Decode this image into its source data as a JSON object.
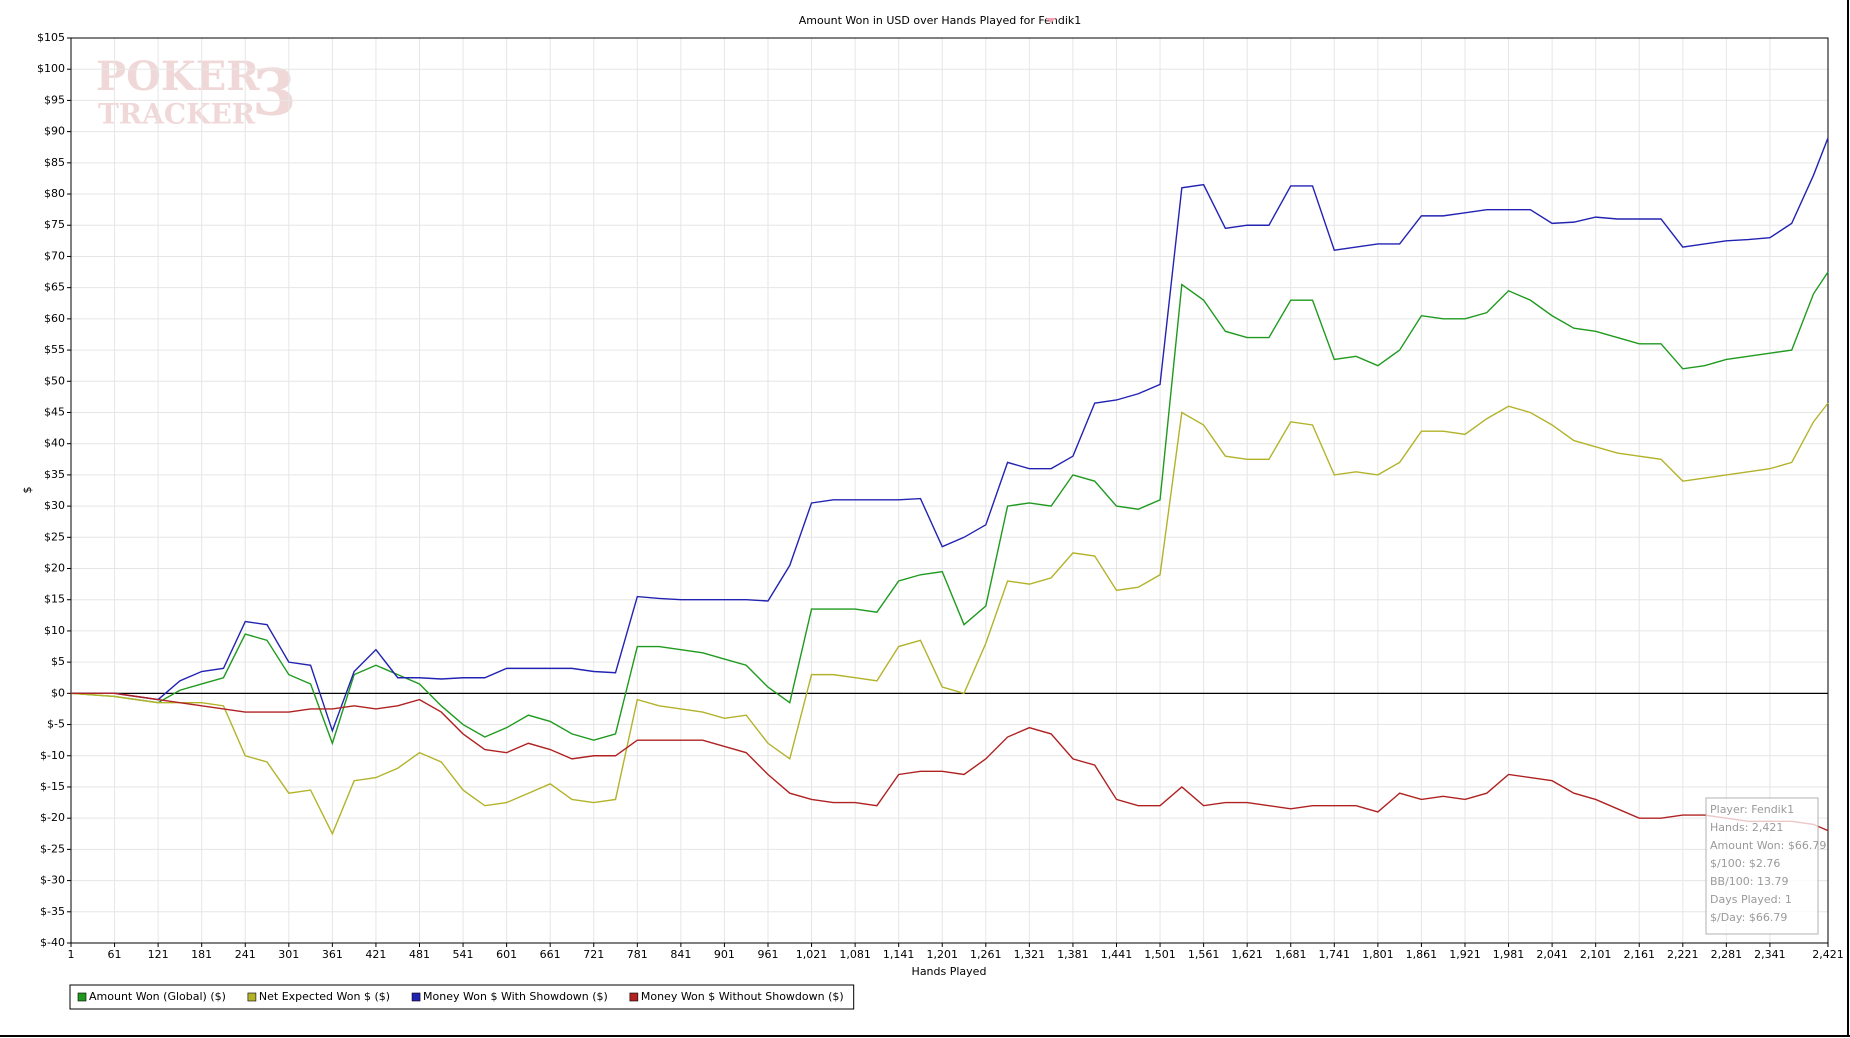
{
  "chart_data": {
    "type": "line",
    "title": "Amount Won in USD over Hands Played for Fendik1",
    "x_label": "Hands Played",
    "y_label": "$",
    "watermark": [
      "POKER",
      "TRACKER",
      "3"
    ],
    "annotations": [
      "Player: Fendik1",
      "Hands: 2,421",
      "Amount Won: $66.79",
      "$/100: $2.76",
      "BB/100: 13.79",
      "Days Played: 1",
      "$/Day: $66.79"
    ],
    "grid": true,
    "xlim": [
      1,
      2421
    ],
    "ylim": [
      -40,
      105
    ],
    "xticks": [
      1,
      61,
      121,
      181,
      241,
      301,
      361,
      421,
      481,
      541,
      601,
      661,
      721,
      781,
      841,
      901,
      961,
      {
        "value": 1021,
        "label": "1,021"
      },
      {
        "value": 1081,
        "label": "1,081"
      },
      {
        "value": 1141,
        "label": "1,141"
      },
      {
        "value": 1201,
        "label": "1,201"
      },
      {
        "value": 1261,
        "label": "1,261"
      },
      {
        "value": 1321,
        "label": "1,321"
      },
      {
        "value": 1381,
        "label": "1,381"
      },
      {
        "value": 1441,
        "label": "1,441"
      },
      {
        "value": 1501,
        "label": "1,501"
      },
      {
        "value": 1561,
        "label": "1,561"
      },
      {
        "value": 1621,
        "label": "1,621"
      },
      {
        "value": 1681,
        "label": "1,681"
      },
      {
        "value": 1741,
        "label": "1,741"
      },
      {
        "value": 1801,
        "label": "1,801"
      },
      {
        "value": 1861,
        "label": "1,861"
      },
      {
        "value": 1921,
        "label": "1,921"
      },
      {
        "value": 1981,
        "label": "1,981"
      },
      {
        "value": 2041,
        "label": "2,041"
      },
      {
        "value": 2101,
        "label": "2,101"
      },
      {
        "value": 2161,
        "label": "2,161"
      },
      {
        "value": 2221,
        "label": "2,221"
      },
      {
        "value": 2281,
        "label": "2,281"
      },
      {
        "value": 2341,
        "label": "2,341"
      },
      {
        "value": 2421,
        "label": "2,421"
      }
    ],
    "yticks": [
      {
        "value": -40,
        "label": "$-40"
      },
      {
        "value": -35,
        "label": "$-35"
      },
      {
        "value": -30,
        "label": "$-30"
      },
      {
        "value": -25,
        "label": "$-25"
      },
      {
        "value": -20,
        "label": "$-20"
      },
      {
        "value": -15,
        "label": "$-15"
      },
      {
        "value": -10,
        "label": "$-10"
      },
      {
        "value": -5,
        "label": "$-5"
      },
      {
        "value": 0,
        "label": "$0"
      },
      {
        "value": 5,
        "label": "$5"
      },
      {
        "value": 10,
        "label": "$10"
      },
      {
        "value": 15,
        "label": "$15"
      },
      {
        "value": 20,
        "label": "$20"
      },
      {
        "value": 25,
        "label": "$25"
      },
      {
        "value": 30,
        "label": "$30"
      },
      {
        "value": 35,
        "label": "$35"
      },
      {
        "value": 40,
        "label": "$40"
      },
      {
        "value": 45,
        "label": "$45"
      },
      {
        "value": 50,
        "label": "$50"
      },
      {
        "value": 55,
        "label": "$55"
      },
      {
        "value": 60,
        "label": "$60"
      },
      {
        "value": 65,
        "label": "$65"
      },
      {
        "value": 70,
        "label": "$70"
      },
      {
        "value": 75,
        "label": "$75"
      },
      {
        "value": 80,
        "label": "$80"
      },
      {
        "value": 85,
        "label": "$85"
      },
      {
        "value": 90,
        "label": "$90"
      },
      {
        "value": 95,
        "label": "$95"
      },
      {
        "value": 100,
        "label": "$100"
      },
      {
        "value": 105,
        "label": "$105"
      }
    ],
    "x": [
      1,
      61,
      121,
      151,
      181,
      211,
      241,
      271,
      301,
      331,
      361,
      391,
      421,
      451,
      481,
      511,
      541,
      571,
      601,
      631,
      661,
      691,
      721,
      751,
      781,
      811,
      841,
      871,
      901,
      931,
      961,
      991,
      1021,
      1051,
      1081,
      1111,
      1141,
      1171,
      1201,
      1231,
      1261,
      1291,
      1321,
      1351,
      1381,
      1411,
      1441,
      1471,
      1501,
      1531,
      1561,
      1591,
      1621,
      1651,
      1681,
      1711,
      1741,
      1771,
      1801,
      1831,
      1861,
      1891,
      1921,
      1951,
      1981,
      2011,
      2041,
      2071,
      2101,
      2131,
      2161,
      2191,
      2221,
      2251,
      2281,
      2311,
      2341,
      2371,
      2401,
      2421
    ],
    "series": [
      {
        "name": "Amount Won (Global) ($)",
        "color": "#1f9a1f",
        "values": [
          0,
          -0.5,
          -1.5,
          0.5,
          1.5,
          2.5,
          9.5,
          8.5,
          3,
          1.5,
          -8,
          3,
          4.5,
          3,
          1.5,
          -2,
          -5,
          -7,
          -5.5,
          -3.5,
          -4.5,
          -6.5,
          -7.5,
          -6.5,
          7.5,
          7.5,
          7,
          6.5,
          5.5,
          4.5,
          1,
          -1.5,
          13.5,
          13.5,
          13.5,
          13,
          18,
          19,
          19.5,
          11,
          14,
          30,
          30.5,
          30,
          35,
          34,
          30,
          29.5,
          31,
          65.5,
          63,
          58,
          57,
          57,
          63,
          63,
          53.5,
          54,
          52.5,
          55,
          60.5,
          60,
          60,
          61,
          64.5,
          63,
          60.5,
          58.5,
          58,
          57,
          56,
          56,
          52,
          52.5,
          53.5,
          54,
          54.5,
          55,
          64,
          67.5
        ]
      },
      {
        "name": "Net Expected Won $ ($)",
        "color": "#b3b32b",
        "values": [
          0,
          -0.5,
          -1.5,
          -1.5,
          -1.5,
          -2,
          -10,
          -11,
          -16,
          -15.5,
          -22.5,
          -14,
          -13.5,
          -12,
          -9.5,
          -11,
          -15.5,
          -18,
          -17.5,
          -16,
          -14.5,
          -17,
          -17.5,
          -17,
          -1,
          -2,
          -2.5,
          -3,
          -4,
          -3.5,
          -8,
          -10.5,
          3,
          3,
          2.5,
          2,
          7.5,
          8.5,
          1,
          0,
          8,
          18,
          17.5,
          18.5,
          22.5,
          22,
          16.5,
          17,
          19,
          45,
          43,
          38,
          37.5,
          37.5,
          43.5,
          43,
          35,
          35.5,
          35,
          37,
          42,
          42,
          41.5,
          44,
          46,
          45,
          43,
          40.5,
          39.5,
          38.5,
          38,
          37.5,
          34,
          34.5,
          35,
          35.5,
          36,
          37,
          43.5,
          46.5
        ]
      },
      {
        "name": "Money Won $ With Showdown ($)",
        "color": "#2323b3",
        "values": [
          0,
          0,
          -1,
          2,
          3.5,
          4,
          11.5,
          11,
          5,
          4.5,
          -6,
          3.5,
          7,
          2.5,
          2.5,
          2.3,
          2.5,
          2.5,
          4,
          4,
          4,
          4,
          3.5,
          3.3,
          15.5,
          15.2,
          15,
          15,
          15,
          15,
          14.8,
          20.5,
          30.5,
          31,
          31,
          31,
          31,
          31.2,
          23.5,
          25,
          27,
          37,
          36,
          36,
          38,
          46.5,
          47,
          48,
          49.5,
          81,
          81.5,
          74.5,
          75,
          75,
          81.3,
          81.3,
          71,
          71.5,
          72,
          72,
          76.5,
          76.5,
          77,
          77.5,
          77.5,
          77.5,
          75.3,
          75.5,
          76.3,
          76,
          76,
          76,
          71.5,
          72,
          72.5,
          72.7,
          73,
          75.3,
          83,
          89
        ]
      },
      {
        "name": "Money Won $ Without Showdown ($)",
        "color": "#b02222",
        "values": [
          0,
          0,
          -1,
          -1.5,
          -2,
          -2.5,
          -3,
          -3,
          -3,
          -2.5,
          -2.5,
          -2,
          -2.5,
          -2,
          -1,
          -3,
          -6.5,
          -9,
          -9.5,
          -8,
          -9,
          -10.5,
          -10,
          -10,
          -7.5,
          -7.5,
          -7.5,
          -7.5,
          -8.5,
          -9.5,
          -13,
          -16,
          -17,
          -17.5,
          -17.5,
          -18,
          -13,
          -12.5,
          -12.5,
          -13,
          -10.5,
          -7,
          -5.5,
          -6.5,
          -10.5,
          -11.5,
          -17,
          -18,
          -18,
          -15,
          -18,
          -17.5,
          -17.5,
          -18,
          -18.5,
          -18,
          -18,
          -18,
          -19,
          -16,
          -17,
          -16.5,
          -17,
          -16,
          -13,
          -13.5,
          -14,
          -16,
          -17,
          -18.5,
          -20,
          -20,
          -19.5,
          -19.5,
          -20,
          -20.5,
          -20.5,
          -20.5,
          -21,
          -22
        ]
      }
    ]
  }
}
